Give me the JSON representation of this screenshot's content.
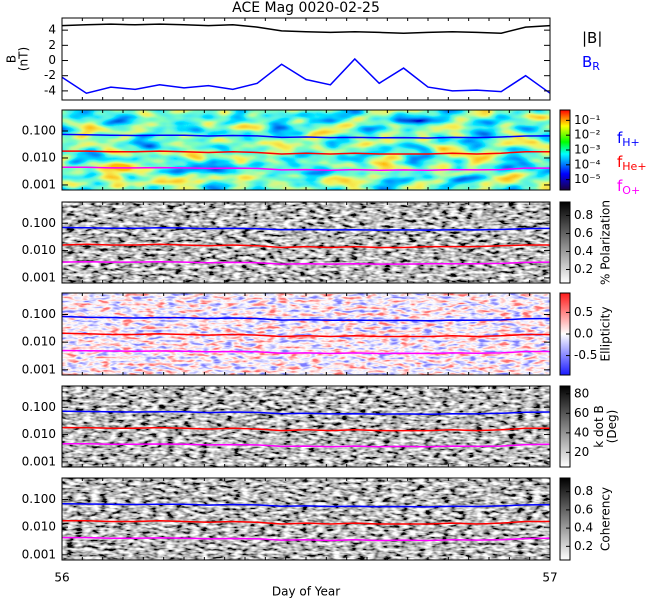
{
  "chart_data": [
    {
      "type": "line",
      "title": "ACE Mag 0020-02-25",
      "ylabel": [
        "B",
        "(nT)"
      ],
      "x": [
        56.0,
        56.05,
        56.1,
        56.15,
        56.2,
        56.25,
        56.3,
        56.35,
        56.4,
        56.45,
        56.5,
        56.55,
        56.6,
        56.65,
        56.7,
        56.75,
        56.8,
        56.85,
        56.9,
        56.95,
        57.0
      ],
      "xlim": [
        56,
        57
      ],
      "ylim": [
        -5.2,
        5.6
      ],
      "yticks": [
        4,
        2,
        0,
        -2,
        -4
      ],
      "legend": "right",
      "series": [
        {
          "name": "|B|",
          "color": "#000000",
          "values": [
            4.6,
            4.7,
            4.8,
            4.7,
            4.8,
            4.7,
            4.6,
            4.7,
            4.4,
            3.9,
            3.8,
            3.7,
            3.8,
            3.7,
            3.6,
            3.7,
            3.8,
            3.7,
            3.6,
            4.4,
            4.6
          ]
        },
        {
          "name": "B",
          "subscript": "R",
          "color": "#0000ff",
          "values": [
            -2.2,
            -4.3,
            -3.5,
            -3.8,
            -3.2,
            -3.6,
            -3.3,
            -3.8,
            -3.0,
            -0.5,
            -2.5,
            -3.2,
            0.2,
            -3.0,
            -1.0,
            -3.5,
            -4.0,
            -3.9,
            -4.1,
            -2.0,
            -4.3
          ]
        }
      ]
    },
    {
      "type": "line",
      "log_y": true,
      "colormap": "jet",
      "legend": "right",
      "x": [
        56.0,
        56.05,
        56.1,
        56.15,
        56.2,
        56.25,
        56.3,
        56.35,
        56.4,
        56.45,
        56.5,
        56.55,
        56.6,
        56.65,
        56.7,
        56.75,
        56.8,
        56.85,
        56.9,
        56.95,
        57.0
      ],
      "xlim": [
        56,
        57
      ],
      "ylim": [
        0.00065,
        0.6
      ],
      "yticks": [
        {
          "value": 0.1,
          "label": "0.100"
        },
        {
          "value": 0.01,
          "label": "0.010"
        },
        0.001
      ],
      "colorbar": {
        "log": true,
        "lim": [
          2e-06,
          0.5
        ],
        "label": [],
        "ticks": [
          {
            "value": 0.1,
            "label": "10⁻¹"
          },
          {
            "value": 0.01,
            "label": "10⁻²"
          },
          {
            "value": 0.001,
            "label": "10⁻³"
          },
          {
            "value": 0.0001,
            "label": "10⁻⁴"
          },
          {
            "value": 1e-05,
            "label": "10⁻⁵"
          }
        ]
      },
      "series": [
        {
          "name": "f",
          "subscript": "H+",
          "color": "#0000ff",
          "values": [
            0.075,
            0.072,
            0.07,
            0.068,
            0.07,
            0.07,
            0.065,
            0.068,
            0.066,
            0.058,
            0.06,
            0.057,
            0.058,
            0.056,
            0.057,
            0.055,
            0.058,
            0.057,
            0.06,
            0.065,
            0.066
          ]
        },
        {
          "name": "f",
          "subscript": "He+",
          "color": "#ff0000",
          "values": [
            0.018,
            0.018,
            0.017,
            0.017,
            0.018,
            0.017,
            0.016,
            0.017,
            0.016,
            0.014,
            0.015,
            0.014,
            0.015,
            0.014,
            0.014,
            0.014,
            0.015,
            0.014,
            0.015,
            0.017,
            0.017
          ]
        },
        {
          "name": "f",
          "subscript": "O+",
          "color": "#ff00ff",
          "values": [
            0.0045,
            0.0045,
            0.0043,
            0.0043,
            0.0044,
            0.0043,
            0.0041,
            0.0042,
            0.0041,
            0.0036,
            0.0037,
            0.0035,
            0.0037,
            0.0035,
            0.0036,
            0.0035,
            0.0037,
            0.0036,
            0.0037,
            0.0042,
            0.0042
          ]
        }
      ]
    },
    {
      "type": "line",
      "log_y": true,
      "colormap": "gray",
      "x": [
        56.0,
        56.05,
        56.1,
        56.15,
        56.2,
        56.25,
        56.3,
        56.35,
        56.4,
        56.45,
        56.5,
        56.55,
        56.6,
        56.65,
        56.7,
        56.75,
        56.8,
        56.85,
        56.9,
        56.95,
        57.0
      ],
      "xlim": [
        56,
        57
      ],
      "ylim": [
        0.00065,
        0.6
      ],
      "yticks": [
        {
          "value": 0.1,
          "label": "0.100"
        },
        {
          "value": 0.01,
          "label": "0.010"
        },
        0.001
      ],
      "colorbar": {
        "lim": [
          0.05,
          0.95
        ],
        "label": [
          "% Polarization"
        ],
        "ticks": [
          0.8,
          0.6,
          0.4,
          0.2
        ]
      },
      "series": [
        {
          "color": "#0000ff",
          "values": [
            0.07,
            0.068,
            0.066,
            0.066,
            0.068,
            0.067,
            0.064,
            0.066,
            0.064,
            0.058,
            0.059,
            0.057,
            0.058,
            0.056,
            0.057,
            0.056,
            0.058,
            0.057,
            0.059,
            0.064,
            0.065
          ]
        },
        {
          "color": "#ff0000",
          "values": [
            0.016,
            0.017,
            0.016,
            0.016,
            0.017,
            0.016,
            0.015,
            0.016,
            0.015,
            0.013,
            0.014,
            0.013,
            0.014,
            0.013,
            0.013,
            0.014,
            0.014,
            0.014,
            0.015,
            0.016,
            0.016
          ]
        },
        {
          "color": "#ff00ff",
          "values": [
            0.0038,
            0.0039,
            0.0038,
            0.0038,
            0.0039,
            0.0038,
            0.0036,
            0.0037,
            0.0036,
            0.0032,
            0.0033,
            0.0032,
            0.0033,
            0.0032,
            0.0032,
            0.0033,
            0.0033,
            0.0033,
            0.0034,
            0.0037,
            0.0038
          ]
        }
      ]
    },
    {
      "type": "line",
      "log_y": true,
      "colormap": "bwr",
      "x": [
        56.0,
        56.05,
        56.1,
        56.15,
        56.2,
        56.25,
        56.3,
        56.35,
        56.4,
        56.45,
        56.5,
        56.55,
        56.6,
        56.65,
        56.7,
        56.75,
        56.8,
        56.85,
        56.9,
        56.95,
        57.0
      ],
      "xlim": [
        56,
        57
      ],
      "ylim": [
        0.00065,
        0.6
      ],
      "yticks": [
        {
          "value": 0.1,
          "label": "0.100"
        },
        {
          "value": 0.01,
          "label": "0.010"
        },
        0.001
      ],
      "colorbar": {
        "lim": [
          -0.95,
          0.95
        ],
        "label": [
          "Ellipticity"
        ],
        "ticks": [
          0.5,
          {
            "value": 0,
            "label": "0.0"
          },
          -0.5
        ]
      },
      "series": [
        {
          "color": "#0000ff",
          "values": [
            0.085,
            0.08,
            0.078,
            0.075,
            0.078,
            0.076,
            0.072,
            0.075,
            0.072,
            0.063,
            0.065,
            0.062,
            0.063,
            0.061,
            0.062,
            0.06,
            0.063,
            0.062,
            0.064,
            0.07,
            0.072
          ]
        },
        {
          "color": "#ff0000",
          "values": [
            0.021,
            0.02,
            0.019,
            0.019,
            0.02,
            0.019,
            0.018,
            0.019,
            0.018,
            0.016,
            0.017,
            0.016,
            0.017,
            0.016,
            0.016,
            0.016,
            0.017,
            0.016,
            0.017,
            0.019,
            0.019
          ]
        },
        {
          "color": "#ff00ff",
          "values": [
            0.005,
            0.0049,
            0.0048,
            0.0047,
            0.0048,
            0.0047,
            0.0045,
            0.0046,
            0.0045,
            0.004,
            0.0041,
            0.0039,
            0.0041,
            0.0039,
            0.004,
            0.0039,
            0.0041,
            0.004,
            0.0041,
            0.0046,
            0.0046
          ]
        }
      ]
    },
    {
      "type": "line",
      "log_y": true,
      "colormap": "gray",
      "x": [
        56.0,
        56.05,
        56.1,
        56.15,
        56.2,
        56.25,
        56.3,
        56.35,
        56.4,
        56.45,
        56.5,
        56.55,
        56.6,
        56.65,
        56.7,
        56.75,
        56.8,
        56.85,
        56.9,
        56.95,
        57.0
      ],
      "xlim": [
        56,
        57
      ],
      "ylim": [
        0.00065,
        0.6
      ],
      "yticks": [
        {
          "value": 0.1,
          "label": "0.100"
        },
        {
          "value": 0.01,
          "label": "0.010"
        },
        0.001
      ],
      "colorbar": {
        "lim": [
          5,
          88
        ],
        "label": [
          "k dot B",
          "(Deg)"
        ],
        "ticks": [
          80,
          60,
          40,
          20
        ]
      },
      "series": [
        {
          "color": "#0000ff",
          "values": [
            0.072,
            0.07,
            0.068,
            0.067,
            0.069,
            0.068,
            0.064,
            0.067,
            0.065,
            0.058,
            0.06,
            0.057,
            0.058,
            0.056,
            0.057,
            0.055,
            0.058,
            0.057,
            0.06,
            0.066,
            0.067
          ]
        },
        {
          "color": "#ff0000",
          "values": [
            0.018,
            0.018,
            0.017,
            0.017,
            0.018,
            0.017,
            0.016,
            0.017,
            0.016,
            0.014,
            0.015,
            0.014,
            0.015,
            0.014,
            0.014,
            0.014,
            0.015,
            0.014,
            0.015,
            0.017,
            0.017
          ]
        },
        {
          "color": "#ff00ff",
          "values": [
            0.0046,
            0.0046,
            0.0044,
            0.0044,
            0.0045,
            0.0044,
            0.0042,
            0.0043,
            0.0042,
            0.0037,
            0.0038,
            0.0036,
            0.0038,
            0.0036,
            0.0037,
            0.0036,
            0.0038,
            0.0037,
            0.0038,
            0.0043,
            0.0044
          ]
        }
      ]
    },
    {
      "type": "line",
      "log_y": true,
      "colormap": "gray",
      "x": [
        56.0,
        56.05,
        56.1,
        56.15,
        56.2,
        56.25,
        56.3,
        56.35,
        56.4,
        56.45,
        56.5,
        56.55,
        56.6,
        56.65,
        56.7,
        56.75,
        56.8,
        56.85,
        56.9,
        56.95,
        57.0
      ],
      "xlim": [
        56,
        57
      ],
      "ylim": [
        0.00065,
        0.6
      ],
      "yticks": [
        {
          "value": 0.1,
          "label": "0.100"
        },
        {
          "value": 0.01,
          "label": "0.010"
        },
        0.001
      ],
      "xticks": [
        56,
        57
      ],
      "xlabel": "Day of Year",
      "colorbar": {
        "lim": [
          0.05,
          0.95
        ],
        "label": [
          "Coherency"
        ],
        "ticks": [
          0.8,
          0.6,
          0.4,
          0.2
        ]
      },
      "series": [
        {
          "color": "#0000ff",
          "values": [
            0.07,
            0.069,
            0.067,
            0.066,
            0.068,
            0.067,
            0.063,
            0.066,
            0.064,
            0.057,
            0.059,
            0.056,
            0.057,
            0.055,
            0.056,
            0.054,
            0.057,
            0.056,
            0.059,
            0.064,
            0.065
          ]
        },
        {
          "color": "#ff0000",
          "values": [
            0.017,
            0.017,
            0.016,
            0.016,
            0.017,
            0.016,
            0.015,
            0.016,
            0.015,
            0.013,
            0.014,
            0.013,
            0.014,
            0.013,
            0.013,
            0.013,
            0.014,
            0.013,
            0.014,
            0.016,
            0.016
          ]
        },
        {
          "color": "#ff00ff",
          "values": [
            0.0042,
            0.0042,
            0.004,
            0.004,
            0.0041,
            0.004,
            0.0038,
            0.0039,
            0.0038,
            0.0034,
            0.0035,
            0.0033,
            0.0035,
            0.0033,
            0.0034,
            0.0033,
            0.0035,
            0.0034,
            0.0035,
            0.0039,
            0.004
          ]
        }
      ]
    }
  ]
}
